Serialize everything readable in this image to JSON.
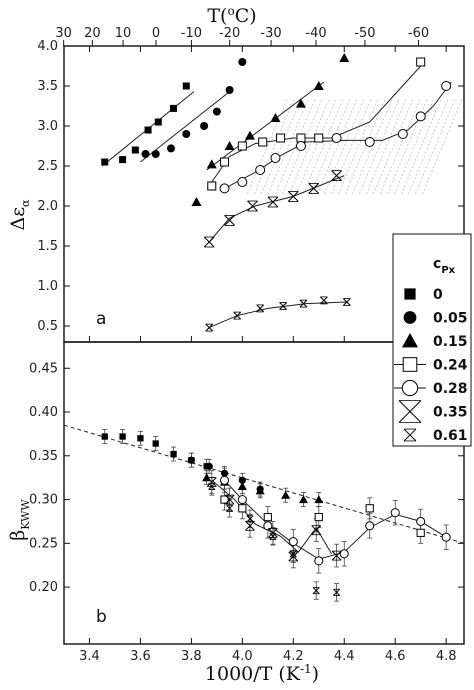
{
  "chart_data": [
    {
      "type": "scatter",
      "panel_label": "a",
      "ylabel": "Δε",
      "ylabel_sub": "α",
      "top_xlabel": "T(",
      "top_xlabel_sup": "o",
      "top_xlabel_end": "C)",
      "xlim": [
        3.3,
        4.87
      ],
      "ylim": [
        0.3,
        4.0
      ],
      "yticks": [
        0.5,
        1.0,
        1.5,
        2.0,
        2.5,
        3.0,
        3.5,
        4.0
      ],
      "ytick_labels": [
        "0.5",
        "1.0",
        "1.5",
        "2.0",
        "2.5",
        "3.0",
        "3.5",
        "4.0"
      ],
      "top_ticks_celsius": [
        30,
        20,
        10,
        0,
        -10,
        -20,
        -30,
        -40,
        -50,
        -60
      ],
      "top_tick_labels": [
        "30",
        "20",
        "10",
        "0",
        "-10",
        "-20",
        "-30",
        "-40",
        "-50",
        "-60"
      ],
      "series": [
        {
          "marker": "filled-square",
          "x": [
            3.46,
            3.53,
            3.58,
            3.63,
            3.67,
            3.73,
            3.78
          ],
          "y": [
            2.55,
            2.58,
            2.7,
            2.95,
            3.05,
            3.22,
            3.5
          ],
          "fit": [
            [
              3.45,
              2.5
            ],
            [
              3.81,
              3.43
            ]
          ]
        },
        {
          "marker": "filled-circle",
          "x": [
            3.62,
            3.66,
            3.72,
            3.78,
            3.85,
            3.9,
            3.95,
            4.0
          ],
          "y": [
            2.65,
            2.65,
            2.72,
            2.9,
            3.0,
            3.18,
            3.45,
            3.8
          ],
          "fit": [
            [
              3.6,
              2.55
            ],
            [
              3.95,
              3.43
            ]
          ]
        },
        {
          "marker": "filled-triangle",
          "x": [
            3.82,
            3.88,
            3.95,
            4.03,
            4.13,
            4.23,
            4.3,
            4.4
          ],
          "y": [
            2.05,
            2.52,
            2.75,
            2.88,
            3.1,
            3.28,
            3.5,
            3.85
          ],
          "fit": [
            [
              3.86,
              2.45
            ],
            [
              4.32,
              3.55
            ]
          ]
        },
        {
          "marker": "open-square",
          "x": [
            3.88,
            3.93,
            4.0,
            4.08,
            4.15,
            4.23,
            4.3,
            4.7
          ],
          "y": [
            2.25,
            2.55,
            2.75,
            2.8,
            2.85,
            2.85,
            2.85,
            3.8
          ],
          "fit": [
            [
              3.88,
              2.3
            ],
            [
              3.95,
              2.62
            ],
            [
              4.05,
              2.78
            ],
            [
              4.2,
              2.85
            ],
            [
              4.35,
              2.85
            ],
            [
              4.5,
              3.05
            ],
            [
              4.6,
              3.4
            ],
            [
              4.7,
              3.75
            ]
          ]
        },
        {
          "marker": "open-circle",
          "x": [
            3.93,
            4.0,
            4.07,
            4.13,
            4.23,
            4.37,
            4.5,
            4.63,
            4.7,
            4.8
          ],
          "y": [
            2.22,
            2.3,
            2.45,
            2.6,
            2.75,
            2.85,
            2.8,
            2.9,
            3.12,
            3.5
          ],
          "fit": [
            [
              3.93,
              2.22
            ],
            [
              4.05,
              2.42
            ],
            [
              4.15,
              2.63
            ],
            [
              4.25,
              2.8
            ],
            [
              4.4,
              2.82
            ],
            [
              4.55,
              2.82
            ],
            [
              4.65,
              2.95
            ],
            [
              4.75,
              3.25
            ],
            [
              4.82,
              3.55
            ]
          ]
        },
        {
          "marker": "large-boxed-x",
          "x": [
            3.87,
            3.95,
            4.04,
            4.12,
            4.2,
            4.28,
            4.37
          ],
          "y": [
            1.55,
            1.82,
            2.0,
            2.05,
            2.12,
            2.22,
            2.38
          ],
          "fit": [
            [
              3.87,
              1.55
            ],
            [
              3.95,
              1.85
            ],
            [
              4.05,
              2.0
            ],
            [
              4.2,
              2.12
            ],
            [
              4.4,
              2.38
            ]
          ]
        },
        {
          "marker": "small-boxed-x",
          "x": [
            3.87,
            3.98,
            4.07,
            4.16,
            4.24,
            4.32,
            4.41
          ],
          "y": [
            0.48,
            0.63,
            0.72,
            0.75,
            0.78,
            0.82,
            0.8
          ],
          "fit": [
            [
              3.87,
              0.48
            ],
            [
              3.98,
              0.63
            ],
            [
              4.1,
              0.72
            ],
            [
              4.25,
              0.78
            ],
            [
              4.41,
              0.8
            ]
          ]
        }
      ]
    },
    {
      "type": "scatter",
      "panel_label": "b",
      "ylabel": "β",
      "ylabel_sub": "KWW",
      "xlabel": "1000/T (K",
      "xlabel_sup": "-1",
      "xlabel_end": ")",
      "xlim": [
        3.3,
        4.87
      ],
      "ylim": [
        0.135,
        0.48
      ],
      "xticks": [
        3.4,
        3.6,
        3.8,
        4.0,
        4.2,
        4.4,
        4.6,
        4.8
      ],
      "xtick_labels": [
        "3.4",
        "3.6",
        "3.8",
        "4.0",
        "4.2",
        "4.4",
        "4.6",
        "4.8"
      ],
      "yticks": [
        0.2,
        0.25,
        0.3,
        0.35,
        0.4,
        0.45
      ],
      "ytick_labels": [
        "0.20",
        "0.25",
        "0.30",
        "0.35",
        "0.40",
        "0.45"
      ],
      "dashed_trend": [
        [
          3.3,
          0.385
        ],
        [
          4.87,
          0.25
        ]
      ],
      "series": [
        {
          "marker": "filled-square",
          "x": [
            3.46,
            3.53,
            3.6,
            3.66,
            3.73,
            3.8,
            3.86
          ],
          "y": [
            0.372,
            0.372,
            0.37,
            0.364,
            0.352,
            0.345,
            0.338
          ],
          "err": 0.008
        },
        {
          "marker": "filled-circle",
          "x": [
            3.8,
            3.87,
            3.93,
            4.0,
            4.07
          ],
          "y": [
            0.345,
            0.338,
            0.33,
            0.322,
            0.312
          ],
          "err": 0.008
        },
        {
          "marker": "filled-triangle",
          "x": [
            3.86,
            3.93,
            4.0,
            4.07,
            4.17,
            4.24,
            4.3
          ],
          "y": [
            0.325,
            0.32,
            0.315,
            0.31,
            0.305,
            0.3,
            0.3
          ],
          "err": 0.008
        },
        {
          "marker": "open-square",
          "x": [
            3.93,
            4.0,
            4.1,
            4.3,
            4.5,
            4.7
          ],
          "y": [
            0.3,
            0.29,
            0.28,
            0.28,
            0.29,
            0.262
          ],
          "err": 0.012
        },
        {
          "marker": "open-circle",
          "x": [
            3.93,
            4.0,
            4.1,
            4.2,
            4.3,
            4.4,
            4.5,
            4.6,
            4.7,
            4.8
          ],
          "y": [
            0.322,
            0.3,
            0.27,
            0.252,
            0.23,
            0.238,
            0.27,
            0.285,
            0.275,
            0.257
          ],
          "err": 0.014,
          "fit": [
            [
              3.93,
              0.322
            ],
            [
              4.0,
              0.3
            ],
            [
              4.1,
              0.272
            ],
            [
              4.2,
              0.25
            ],
            [
              4.3,
              0.232
            ],
            [
              4.4,
              0.24
            ],
            [
              4.5,
              0.268
            ],
            [
              4.6,
              0.283
            ],
            [
              4.7,
              0.275
            ],
            [
              4.8,
              0.257
            ]
          ]
        },
        {
          "marker": "large-boxed-x",
          "x": [
            3.88,
            3.95,
            4.03,
            4.12,
            4.2,
            4.29,
            4.37
          ],
          "y": [
            0.32,
            0.3,
            0.27,
            0.262,
            0.235,
            0.265,
            0.236
          ],
          "err": 0.013,
          "fit": [
            [
              3.88,
              0.322
            ],
            [
              3.97,
              0.3
            ],
            [
              4.05,
              0.272
            ],
            [
              4.15,
              0.258
            ],
            [
              4.22,
              0.24
            ],
            [
              4.29,
              0.268
            ],
            [
              4.35,
              0.238
            ]
          ]
        },
        {
          "marker": "small-boxed-x",
          "x": [
            3.88,
            3.95,
            4.03,
            4.12,
            4.2,
            4.29,
            4.37
          ],
          "y": [
            0.315,
            0.29,
            0.278,
            0.258,
            0.238,
            0.196,
            0.194
          ],
          "err": 0.01
        }
      ]
    }
  ],
  "legend": {
    "title": "c",
    "title_sub": "Px",
    "entries": [
      {
        "marker": "filled-square",
        "label": "0"
      },
      {
        "marker": "filled-circle",
        "label": "0.05"
      },
      {
        "marker": "filled-triangle",
        "label": "0.15"
      },
      {
        "marker": "open-square",
        "label": "0.24"
      },
      {
        "marker": "open-circle",
        "label": "0.28"
      },
      {
        "marker": "large-boxed-x",
        "label": "0.35"
      },
      {
        "marker": "small-boxed-x",
        "label": "0.61"
      }
    ]
  }
}
